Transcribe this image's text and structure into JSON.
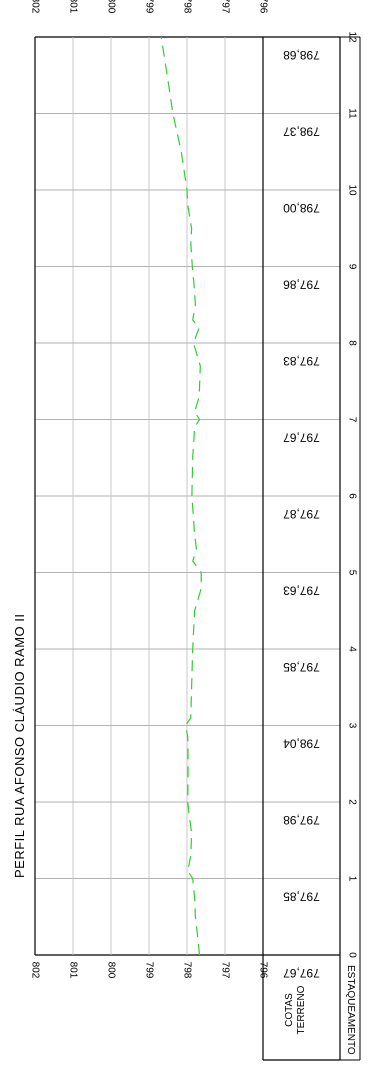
{
  "chart_data": {
    "type": "line",
    "title": "PERFIL  RUA  AFONSO  CLÁUDIO  RAMO II",
    "x_axis_label": "ESTAQUEAMENTO",
    "table_label": "COTAS TERRENO",
    "table_label_lines": [
      "COTAS",
      "TERRENO"
    ],
    "elevation_ticks": [
      {
        "value": 802,
        "label": "802"
      },
      {
        "value": 801,
        "label": "801"
      },
      {
        "value": 800,
        "label": "800"
      },
      {
        "value": 799,
        "label": "799"
      },
      {
        "value": 798,
        "label": "798"
      },
      {
        "value": 797,
        "label": "797"
      },
      {
        "value": 796,
        "label": "796"
      }
    ],
    "ylim": [
      796,
      802
    ],
    "xlim": [
      0,
      12
    ],
    "stations": [
      {
        "station": 0,
        "label": "0",
        "cota": 797.67,
        "cota_label": "797,67"
      },
      {
        "station": 1,
        "label": "1",
        "cota": 797.85,
        "cota_label": "797,85"
      },
      {
        "station": 2,
        "label": "2",
        "cota": 797.98,
        "cota_label": "797,98"
      },
      {
        "station": 3,
        "label": "3",
        "cota": 798.04,
        "cota_label": "798,04"
      },
      {
        "station": 4,
        "label": "4",
        "cota": 797.85,
        "cota_label": "797,85"
      },
      {
        "station": 5,
        "label": "5",
        "cota": 797.63,
        "cota_label": "797,63"
      },
      {
        "station": 6,
        "label": "6",
        "cota": 797.87,
        "cota_label": "797,87"
      },
      {
        "station": 7,
        "label": "7",
        "cota": 797.67,
        "cota_label": "797,67"
      },
      {
        "station": 8,
        "label": "8",
        "cota": 797.83,
        "cota_label": "797,83"
      },
      {
        "station": 9,
        "label": "9",
        "cota": 797.86,
        "cota_label": "797,86"
      },
      {
        "station": 10,
        "label": "10",
        "cota": 798.0,
        "cota_label": "798,00"
      },
      {
        "station": 11,
        "label": "11",
        "cota": 798.37,
        "cota_label": "798,37"
      },
      {
        "station": 12,
        "label": "12",
        "cota": 798.68,
        "cota_label": "798,68"
      }
    ],
    "series": [
      {
        "style": "dashed",
        "color": "#33cc33",
        "points": [
          [
            0,
            797.67
          ],
          [
            0.25,
            797.72
          ],
          [
            0.5,
            797.78
          ],
          [
            0.75,
            797.8
          ],
          [
            1,
            797.85
          ],
          [
            1.1,
            797.98
          ],
          [
            1.3,
            797.9
          ],
          [
            1.6,
            797.88
          ],
          [
            1.85,
            797.95
          ],
          [
            2,
            797.98
          ],
          [
            2.5,
            797.97
          ],
          [
            2.85,
            797.98
          ],
          [
            3,
            798.04
          ],
          [
            3.1,
            797.9
          ],
          [
            3.5,
            797.88
          ],
          [
            4,
            797.85
          ],
          [
            4.5,
            797.8
          ],
          [
            4.8,
            797.62
          ],
          [
            5,
            797.63
          ],
          [
            5.15,
            797.85
          ],
          [
            5.3,
            797.75
          ],
          [
            5.5,
            797.8
          ],
          [
            6,
            797.87
          ],
          [
            6.5,
            797.85
          ],
          [
            6.9,
            797.8
          ],
          [
            7,
            797.67
          ],
          [
            7.1,
            797.8
          ],
          [
            7.3,
            797.68
          ],
          [
            7.7,
            797.65
          ],
          [
            8,
            797.83
          ],
          [
            8.2,
            797.68
          ],
          [
            8.3,
            797.85
          ],
          [
            8.5,
            797.78
          ],
          [
            8.8,
            797.82
          ],
          [
            9,
            797.86
          ],
          [
            9.3,
            797.9
          ],
          [
            9.5,
            797.88
          ],
          [
            9.8,
            797.98
          ],
          [
            10,
            798.0
          ],
          [
            10.5,
            798.15
          ],
          [
            11,
            798.37
          ],
          [
            11.5,
            798.52
          ],
          [
            12,
            798.68
          ]
        ]
      }
    ]
  }
}
